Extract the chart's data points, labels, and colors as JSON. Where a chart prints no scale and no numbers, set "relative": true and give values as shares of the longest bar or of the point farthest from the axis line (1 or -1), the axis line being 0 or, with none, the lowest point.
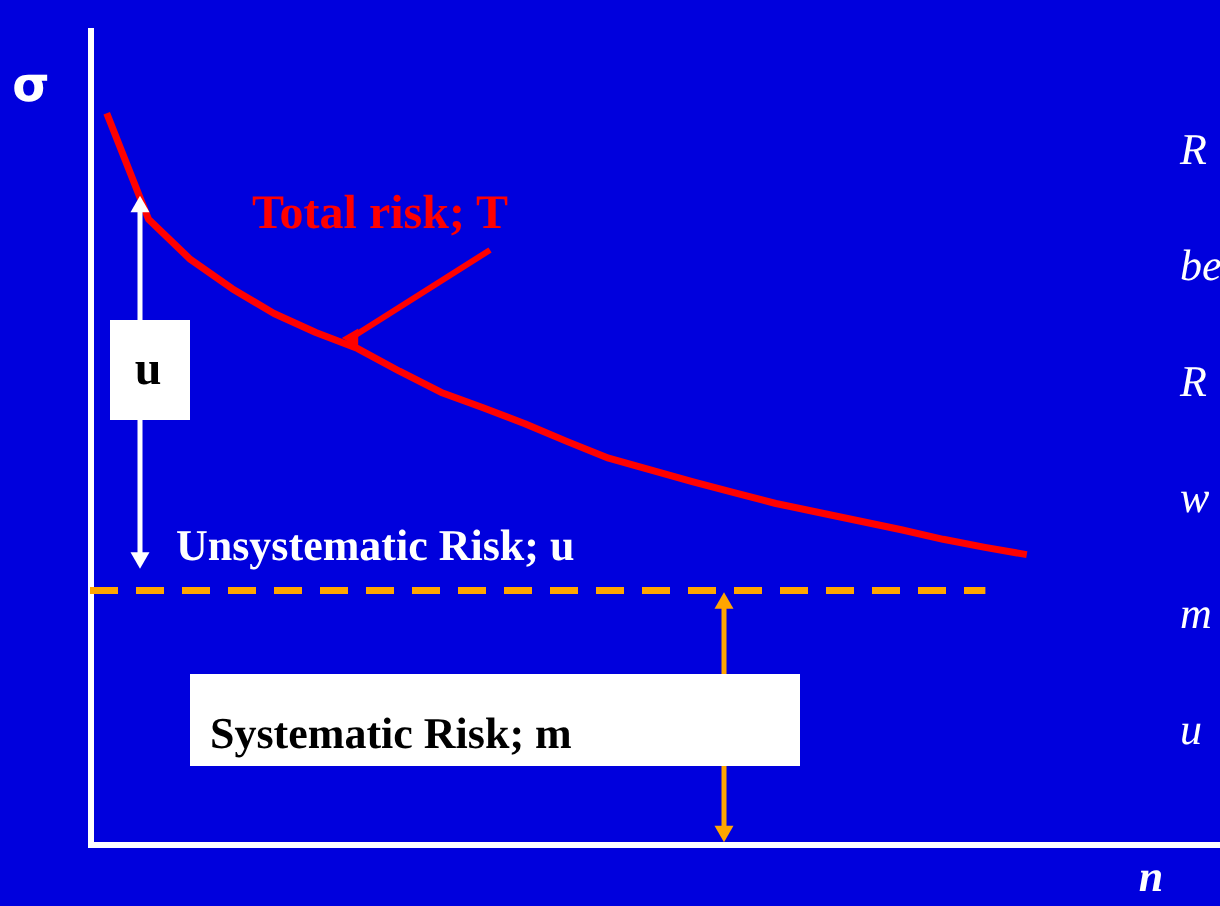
{
  "chart_data": {
    "type": "line",
    "relative": true,
    "xlabel": "n",
    "ylabel": "σ",
    "categories": [
      null,
      null,
      null,
      null,
      null,
      null,
      null,
      null,
      null,
      null,
      null,
      null,
      null,
      null,
      null,
      null,
      null,
      null,
      null,
      null,
      null,
      null,
      null
    ],
    "series": [
      {
        "name": "Total risk; T",
        "color": "#ff0000",
        "values": [
          1.0,
          0.855,
          0.8,
          0.76,
          0.726,
          0.7,
          0.678,
          0.647,
          0.618,
          0.597,
          0.575,
          0.551,
          0.528,
          0.512,
          0.496,
          0.481,
          0.466,
          0.454,
          0.442,
          0.43,
          0.417,
          0.406,
          0.396
        ]
      }
    ],
    "ref_lines": [
      {
        "axis": "y",
        "value": 0.347,
        "color": "#ffa500",
        "line_style": "dashed"
      }
    ],
    "annotations": [
      "Unsystematic Risk; u",
      "u",
      "Systematic Risk;  m",
      "R",
      "be",
      "R",
      "w",
      "m",
      "u"
    ],
    "grid": false,
    "marker": "none",
    "tick_labels": false
  }
}
